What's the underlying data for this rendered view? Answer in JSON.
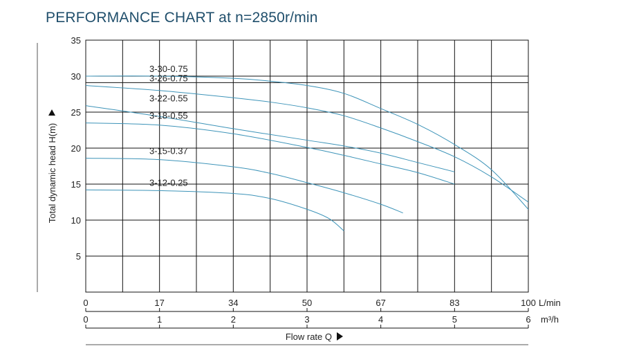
{
  "title": "PERFORMANCE CHART at n=2850r/min",
  "chart_data": {
    "type": "line",
    "title": "PERFORMANCE CHART at n=2850r/min",
    "ylabel": "Total dynamic head H(m)",
    "xlabel": "Flow rate Q",
    "ylim": [
      0,
      35
    ],
    "xlim": [
      0,
      6
    ],
    "y_ticks": [
      5,
      10,
      15,
      20,
      25,
      30,
      35
    ],
    "x_ticks_lmin": [
      "0",
      "17",
      "34",
      "50",
      "67",
      "83",
      "100"
    ],
    "x_unit_lmin": "L/min",
    "x_ticks_m3h": [
      "0",
      "1",
      "2",
      "3",
      "4",
      "5",
      "6"
    ],
    "x_unit_m3h": "m³/h",
    "grid": true,
    "series": [
      {
        "name": "3-30-0.75",
        "x": [
          0,
          1,
          2,
          2.5,
          3,
          3.5,
          4,
          4.5,
          5,
          5.5,
          6
        ],
        "y": [
          30,
          30,
          29.7,
          29.3,
          28.7,
          27.6,
          25.5,
          23.3,
          20.5,
          17,
          11.5
        ]
      },
      {
        "name": "3-26-0.75",
        "x": [
          0,
          1,
          2,
          2.5,
          3,
          3.5,
          4,
          4.5,
          5,
          5.5,
          6
        ],
        "y": [
          28.7,
          28,
          27,
          26.4,
          25.6,
          24.5,
          22.8,
          20.9,
          18.8,
          16,
          12.5
        ]
      },
      {
        "name": "3-22-0.55",
        "x": [
          0,
          1,
          2,
          3,
          3.5,
          4,
          4.5,
          5
        ],
        "y": [
          25.9,
          24.4,
          22.7,
          21.1,
          20.3,
          19.3,
          18,
          16.7
        ]
      },
      {
        "name": "3-18-0.55",
        "x": [
          0,
          1,
          2,
          3,
          3.5,
          4,
          4.5,
          5
        ],
        "y": [
          23.5,
          23.2,
          22,
          20.1,
          19,
          17.8,
          16.6,
          15
        ]
      },
      {
        "name": "3-15-0.37",
        "x": [
          0,
          1,
          2,
          2.5,
          3,
          3.5,
          4,
          4.3
        ],
        "y": [
          18.6,
          18.4,
          17.4,
          16.5,
          15.2,
          13.8,
          12.2,
          11
        ]
      },
      {
        "name": "3-12-0.25",
        "x": [
          0,
          1,
          2,
          2.5,
          3,
          3.3,
          3.5
        ],
        "y": [
          14.2,
          14.1,
          13.7,
          13,
          11.5,
          10.2,
          8.5
        ]
      }
    ]
  }
}
